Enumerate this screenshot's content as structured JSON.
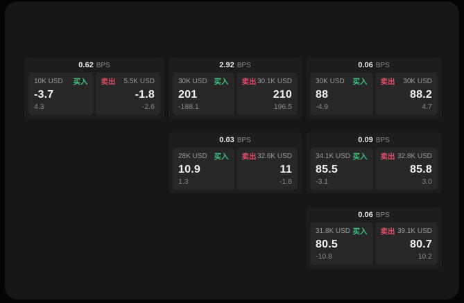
{
  "labels": {
    "bps": "BPS",
    "buy": "买入",
    "sell": "卖出"
  },
  "colors": {
    "buy": "#3fc380",
    "sell": "#dd4f66",
    "panel_bg": "#161616",
    "card_bg": "#1d1d1d",
    "tile_bg": "#272727"
  },
  "cards": [
    {
      "bps": "0.62",
      "buy": {
        "amount": "10K USD",
        "price": "-3.7",
        "sub": "4.3"
      },
      "sell": {
        "amount": "5.5K USD",
        "price": "-1.8",
        "sub": "-2.6"
      }
    },
    {
      "bps": "2.92",
      "buy": {
        "amount": "30K USD",
        "price": "201",
        "sub": "-188.1"
      },
      "sell": {
        "amount": "30.1K USD",
        "price": "210",
        "sub": "196.5"
      }
    },
    {
      "bps": "0.06",
      "buy": {
        "amount": "30K USD",
        "price": "88",
        "sub": "-4.9"
      },
      "sell": {
        "amount": "30K USD",
        "price": "88.2",
        "sub": "4.7"
      }
    },
    {
      "bps": "0.03",
      "buy": {
        "amount": "28K USD",
        "price": "10.9",
        "sub": "1.3"
      },
      "sell": {
        "amount": "32.6K USD",
        "price": "11",
        "sub": "-1.8"
      }
    },
    {
      "bps": "0.09",
      "buy": {
        "amount": "34.1K USD",
        "price": "85.5",
        "sub": "-3.1"
      },
      "sell": {
        "amount": "32.8K USD",
        "price": "85.8",
        "sub": "3.0"
      }
    },
    {
      "bps": "0.06",
      "buy": {
        "amount": "31.8K USD",
        "price": "80.5",
        "sub": "-10.8"
      },
      "sell": {
        "amount": "39.1K USD",
        "price": "80.7",
        "sub": "10.2"
      }
    }
  ]
}
